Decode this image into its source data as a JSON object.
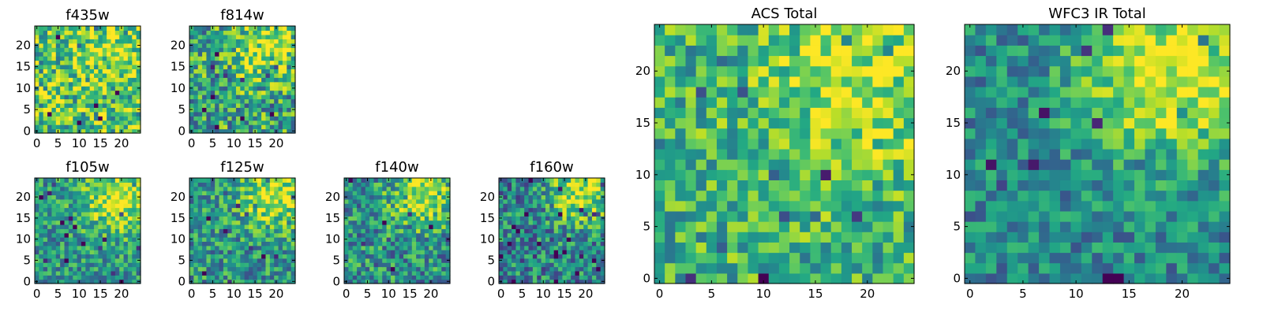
{
  "chart_data": [
    {
      "type": "heatmap",
      "title": "f435w",
      "x_ticks": [
        0,
        5,
        10,
        15,
        20
      ],
      "y_ticks": [
        0,
        5,
        10,
        15,
        20
      ],
      "grid_size": 25,
      "colormap": "viridis",
      "pattern": {
        "seed": 11,
        "base": 0.7,
        "noise": 0.34,
        "blob": {
          "cx": 18,
          "cy": 20,
          "r": 6,
          "amp": 0.18
        }
      }
    },
    {
      "type": "heatmap",
      "title": "f814w",
      "x_ticks": [
        0,
        5,
        10,
        15,
        20
      ],
      "y_ticks": [
        0,
        5,
        10,
        15,
        20
      ],
      "grid_size": 25,
      "colormap": "viridis",
      "pattern": {
        "seed": 23,
        "base": 0.58,
        "noise": 0.34,
        "blob": {
          "cx": 18,
          "cy": 20,
          "r": 6,
          "amp": 0.3
        }
      }
    },
    {
      "type": "heatmap",
      "title": "f105w",
      "x_ticks": [
        0,
        5,
        10,
        15,
        20
      ],
      "y_ticks": [
        0,
        5,
        10,
        15,
        20
      ],
      "grid_size": 25,
      "colormap": "viridis",
      "pattern": {
        "seed": 37,
        "base": 0.52,
        "noise": 0.26,
        "blob": {
          "cx": 19,
          "cy": 20,
          "r": 6,
          "amp": 0.42
        }
      }
    },
    {
      "type": "heatmap",
      "title": "f125w",
      "x_ticks": [
        0,
        5,
        10,
        15,
        20
      ],
      "y_ticks": [
        0,
        5,
        10,
        15,
        20
      ],
      "grid_size": 25,
      "colormap": "viridis",
      "pattern": {
        "seed": 41,
        "base": 0.52,
        "noise": 0.28,
        "blob": {
          "cx": 19,
          "cy": 20,
          "r": 5,
          "amp": 0.44
        }
      }
    },
    {
      "type": "heatmap",
      "title": "f140w",
      "x_ticks": [
        0,
        5,
        10,
        15,
        20
      ],
      "y_ticks": [
        0,
        5,
        10,
        15,
        20
      ],
      "grid_size": 25,
      "colormap": "viridis",
      "pattern": {
        "seed": 53,
        "base": 0.5,
        "noise": 0.3,
        "blob": {
          "cx": 18,
          "cy": 20,
          "r": 5,
          "amp": 0.44
        }
      }
    },
    {
      "type": "heatmap",
      "title": "f160w",
      "x_ticks": [
        0,
        5,
        10,
        15,
        20
      ],
      "y_ticks": [
        0,
        5,
        10,
        15,
        20
      ],
      "grid_size": 25,
      "colormap": "viridis",
      "pattern": {
        "seed": 67,
        "base": 0.45,
        "noise": 0.3,
        "blob": {
          "cx": 19,
          "cy": 21,
          "r": 5,
          "amp": 0.5
        }
      }
    },
    {
      "type": "heatmap",
      "title": "ACS Total",
      "x_ticks": [
        0,
        5,
        10,
        15,
        20
      ],
      "y_ticks": [
        0,
        5,
        10,
        15,
        20
      ],
      "grid_size": 25,
      "colormap": "viridis",
      "pattern": {
        "seed": 79,
        "base": 0.64,
        "noise": 0.26,
        "blob": {
          "cx": 19,
          "cy": 19,
          "r": 6,
          "amp": 0.26
        }
      }
    },
    {
      "type": "heatmap",
      "title": "WFC3 IR Total",
      "x_ticks": [
        0,
        5,
        10,
        15,
        20
      ],
      "y_ticks": [
        0,
        5,
        10,
        15,
        20
      ],
      "grid_size": 25,
      "colormap": "viridis",
      "pattern": {
        "seed": 97,
        "base": 0.46,
        "noise": 0.22,
        "blob": {
          "cx": 19,
          "cy": 20,
          "r": 6,
          "amp": 0.52
        }
      }
    }
  ]
}
